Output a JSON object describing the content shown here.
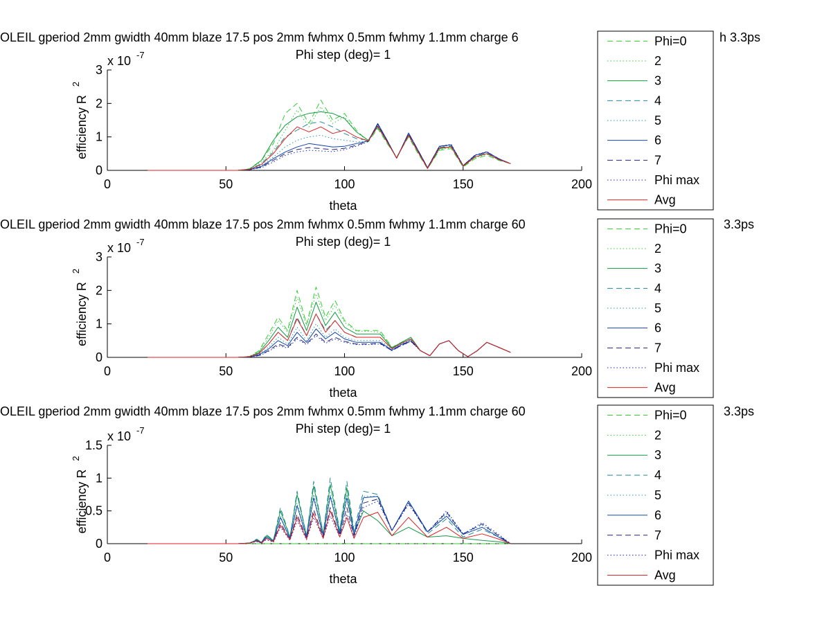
{
  "figure": {
    "background": "#ffffff"
  },
  "legend_styles": [
    {
      "color": "#33cc33",
      "dash": "8,5"
    },
    {
      "color": "#33cc33",
      "dash": "1.5,3"
    },
    {
      "color": "#119944",
      "dash": ""
    },
    {
      "color": "#228899",
      "dash": "8,5"
    },
    {
      "color": "#2299aa",
      "dash": "1.5,3"
    },
    {
      "color": "#1144aa",
      "dash": ""
    },
    {
      "color": "#222277",
      "dash": "8,5"
    },
    {
      "color": "#1122cc",
      "dash": "1.5,3"
    },
    {
      "color": "#dd2222",
      "dash": ""
    }
  ],
  "chart_data": [
    {
      "type": "line",
      "title": "OLEIL gperiod 2mm gwidth 40mm blaze 17.5 pos 2mm fwhmx 0.5mm fwhmy 1.1mm charge 6",
      "title_right": "h 3.3ps",
      "subtitle": "Phi step (deg)= 1",
      "xlabel": "theta",
      "ylabel": "efficiency R",
      "ylabel_sup": "2",
      "exponent": "x 10",
      "exponent_sup": "-7",
      "xlim": [
        0,
        200
      ],
      "ylim": [
        0,
        3
      ],
      "xticks": [
        "0",
        "50",
        "100",
        "150",
        "200"
      ],
      "yticks": [
        "0",
        "1",
        "2",
        "3"
      ],
      "legend": [
        "Phi=0",
        "2",
        "3",
        "4",
        "5",
        "6",
        "7",
        "Phi max",
        "Avg"
      ],
      "legend_position": "right",
      "x": [
        17,
        40,
        55,
        60,
        65,
        70,
        75,
        80,
        85,
        90,
        95,
        100,
        105,
        110,
        114,
        118,
        122,
        127,
        131,
        135,
        140,
        145,
        150,
        155,
        160,
        165,
        170
      ],
      "series": [
        {
          "values": [
            0,
            0,
            0,
            0.05,
            0.3,
            0.8,
            1.7,
            2.0,
            1.4,
            2.1,
            1.5,
            1.7,
            1.2,
            0.85,
            1.25,
            0.8,
            0.4,
            1.0,
            0.5,
            0.05,
            0.6,
            0.65,
            0.1,
            0.35,
            0.45,
            0.3,
            0.2
          ]
        },
        {
          "values": [
            0,
            0,
            0,
            0.04,
            0.25,
            0.6,
            1.2,
            1.8,
            1.3,
            1.9,
            1.4,
            1.6,
            1.15,
            0.88,
            1.28,
            0.82,
            0.38,
            1.02,
            0.52,
            0.05,
            0.62,
            0.68,
            0.12,
            0.38,
            0.48,
            0.32,
            0.2
          ]
        },
        {
          "values": [
            0,
            0,
            0,
            0.04,
            0.3,
            0.9,
            1.35,
            1.6,
            1.7,
            1.75,
            1.7,
            1.55,
            1.15,
            0.9,
            1.3,
            0.85,
            0.37,
            1.05,
            0.55,
            0.06,
            0.65,
            0.7,
            0.12,
            0.4,
            0.5,
            0.32,
            0.2
          ]
        },
        {
          "values": [
            0,
            0,
            0,
            0.03,
            0.2,
            0.55,
            1.0,
            1.2,
            1.4,
            1.45,
            1.3,
            1.1,
            0.95,
            0.9,
            1.35,
            0.88,
            0.37,
            1.08,
            0.58,
            0.06,
            0.68,
            0.72,
            0.13,
            0.42,
            0.52,
            0.33,
            0.2
          ]
        },
        {
          "values": [
            0,
            0,
            0,
            0.03,
            0.15,
            0.4,
            0.7,
            0.9,
            1.0,
            1.05,
            0.95,
            0.9,
            0.85,
            0.88,
            1.38,
            0.9,
            0.37,
            1.1,
            0.6,
            0.07,
            0.7,
            0.75,
            0.14,
            0.44,
            0.54,
            0.34,
            0.2
          ]
        },
        {
          "values": [
            0,
            0,
            0,
            0.02,
            0.12,
            0.35,
            0.55,
            0.7,
            0.8,
            0.75,
            0.7,
            0.72,
            0.8,
            0.88,
            1.4,
            0.9,
            0.36,
            1.12,
            0.6,
            0.08,
            0.72,
            0.76,
            0.14,
            0.45,
            0.55,
            0.35,
            0.2
          ]
        },
        {
          "values": [
            0,
            0,
            0,
            0.02,
            0.1,
            0.3,
            0.5,
            0.62,
            0.68,
            0.65,
            0.62,
            0.66,
            0.75,
            0.87,
            1.38,
            0.88,
            0.36,
            1.1,
            0.6,
            0.08,
            0.72,
            0.76,
            0.14,
            0.45,
            0.55,
            0.35,
            0.2
          ]
        },
        {
          "values": [
            0,
            0,
            0,
            0.02,
            0.08,
            0.25,
            0.45,
            0.55,
            0.6,
            0.58,
            0.56,
            0.62,
            0.72,
            0.86,
            1.35,
            0.88,
            0.36,
            1.1,
            0.6,
            0.08,
            0.72,
            0.78,
            0.15,
            0.46,
            0.56,
            0.35,
            0.2
          ]
        },
        {
          "values": [
            0,
            0,
            0,
            0.03,
            0.18,
            0.5,
            0.95,
            1.3,
            1.15,
            1.3,
            1.1,
            1.2,
            1.0,
            0.88,
            1.32,
            0.85,
            0.37,
            1.05,
            0.55,
            0.06,
            0.67,
            0.7,
            0.13,
            0.4,
            0.5,
            0.33,
            0.2
          ]
        }
      ]
    },
    {
      "type": "line",
      "title": "OLEIL gperiod 2mm gwidth 40mm blaze 17.5 pos 2mm fwhmx 0.5mm fwhmy 1.1mm charge 60",
      "title_right": "3.3ps",
      "subtitle": "Phi step (deg)= 1",
      "xlabel": "theta",
      "ylabel": "efficiency R",
      "ylabel_sup": "2",
      "exponent": "x 10",
      "exponent_sup": "-7",
      "xlim": [
        0,
        200
      ],
      "ylim": [
        0,
        3
      ],
      "xticks": [
        "0",
        "50",
        "100",
        "150",
        "200"
      ],
      "yticks": [
        "0",
        "1",
        "2",
        "3"
      ],
      "legend": [
        "Phi=0",
        "2",
        "3",
        "4",
        "5",
        "6",
        "7",
        "Phi max",
        "Avg"
      ],
      "legend_position": "right",
      "x": [
        17,
        40,
        55,
        60,
        64,
        68,
        72,
        76,
        80,
        84,
        88,
        92,
        96,
        100,
        105,
        110,
        115,
        120,
        124,
        128,
        132,
        136,
        140,
        144,
        148,
        152,
        156,
        160,
        165,
        170
      ],
      "series": [
        {
          "values": [
            0,
            0,
            0,
            0.03,
            0.2,
            0.7,
            1.2,
            0.8,
            2.0,
            1.0,
            2.1,
            1.2,
            1.7,
            1.1,
            0.8,
            0.8,
            0.8,
            0.3,
            0.45,
            0.55,
            0.2,
            0.05,
            0.4,
            0.5,
            0.2,
            0.02,
            0.2,
            0.45,
            0.3,
            0.15
          ]
        },
        {
          "values": [
            0,
            0,
            0,
            0.03,
            0.18,
            0.6,
            1.1,
            0.75,
            1.8,
            0.95,
            1.9,
            1.1,
            1.55,
            1.05,
            0.78,
            0.78,
            0.75,
            0.3,
            0.45,
            0.55,
            0.2,
            0.05,
            0.4,
            0.5,
            0.2,
            0.02,
            0.2,
            0.45,
            0.3,
            0.15
          ]
        },
        {
          "values": [
            0,
            0,
            0,
            0.02,
            0.15,
            0.5,
            0.9,
            0.6,
            1.5,
            0.8,
            1.65,
            0.95,
            1.35,
            0.9,
            0.7,
            0.7,
            0.7,
            0.28,
            0.45,
            0.6,
            0.2,
            0.05,
            0.4,
            0.5,
            0.2,
            0.02,
            0.2,
            0.45,
            0.3,
            0.15
          ]
        },
        {
          "values": [
            0,
            0,
            0,
            0.02,
            0.12,
            0.4,
            0.75,
            0.5,
            1.2,
            0.65,
            1.3,
            0.8,
            1.1,
            0.75,
            0.6,
            0.6,
            0.6,
            0.26,
            0.42,
            0.55,
            0.2,
            0.05,
            0.4,
            0.5,
            0.2,
            0.02,
            0.2,
            0.45,
            0.3,
            0.15
          ]
        },
        {
          "values": [
            0,
            0,
            0,
            0.02,
            0.1,
            0.3,
            0.6,
            0.4,
            0.9,
            0.5,
            1.0,
            0.6,
            0.85,
            0.6,
            0.5,
            0.5,
            0.5,
            0.25,
            0.4,
            0.52,
            0.2,
            0.05,
            0.4,
            0.5,
            0.2,
            0.02,
            0.2,
            0.45,
            0.3,
            0.15
          ]
        },
        {
          "values": [
            0,
            0,
            0,
            0.01,
            0.08,
            0.25,
            0.5,
            0.35,
            0.75,
            0.45,
            0.85,
            0.55,
            0.75,
            0.55,
            0.45,
            0.45,
            0.45,
            0.22,
            0.38,
            0.5,
            0.2,
            0.05,
            0.4,
            0.5,
            0.2,
            0.02,
            0.2,
            0.45,
            0.3,
            0.15
          ]
        },
        {
          "values": [
            0,
            0,
            0,
            0.01,
            0.06,
            0.2,
            0.4,
            0.3,
            0.6,
            0.4,
            0.7,
            0.45,
            0.6,
            0.48,
            0.4,
            0.4,
            0.42,
            0.2,
            0.36,
            0.48,
            0.2,
            0.05,
            0.4,
            0.5,
            0.2,
            0.02,
            0.2,
            0.45,
            0.3,
            0.15
          ]
        },
        {
          "values": [
            0,
            0,
            0,
            0.01,
            0.05,
            0.18,
            0.35,
            0.28,
            0.55,
            0.38,
            0.65,
            0.42,
            0.55,
            0.45,
            0.38,
            0.38,
            0.4,
            0.2,
            0.35,
            0.47,
            0.2,
            0.05,
            0.4,
            0.5,
            0.2,
            0.02,
            0.2,
            0.45,
            0.3,
            0.15
          ]
        },
        {
          "values": [
            0,
            0,
            0,
            0.02,
            0.12,
            0.4,
            0.75,
            0.5,
            1.15,
            0.65,
            1.3,
            0.75,
            1.1,
            0.75,
            0.6,
            0.6,
            0.6,
            0.26,
            0.42,
            0.55,
            0.2,
            0.05,
            0.4,
            0.5,
            0.2,
            0.02,
            0.2,
            0.45,
            0.3,
            0.15
          ]
        }
      ]
    },
    {
      "type": "line",
      "title": "OLEIL gperiod 2mm gwidth 40mm blaze 17.5 pos 2mm fwhmx 0.5mm fwhmy 1.1mm charge 60",
      "title_right": "3.3ps",
      "subtitle": "Phi step (deg)= 1",
      "xlabel": "theta",
      "ylabel": "efficiency R",
      "ylabel_sup": "2",
      "exponent": "x 10",
      "exponent_sup": "-7",
      "xlim": [
        0,
        200
      ],
      "ylim": [
        0,
        1.5
      ],
      "xticks": [
        "0",
        "50",
        "100",
        "150",
        "200"
      ],
      "yticks": [
        "0",
        "0.5",
        "1",
        "1.5"
      ],
      "legend": [
        "Phi=0",
        "2",
        "3",
        "4",
        "5",
        "6",
        "7",
        "Phi max",
        "Avg"
      ],
      "legend_position": "right",
      "x": [
        17,
        40,
        55,
        60,
        63,
        65,
        67,
        70,
        73,
        77,
        80,
        84,
        87,
        91,
        94,
        98,
        101,
        104,
        108,
        114,
        120,
        127,
        135,
        143,
        150,
        158,
        165,
        170
      ],
      "series": [
        {
          "values": [
            0,
            0,
            0,
            0,
            0,
            0,
            0,
            0,
            0,
            0,
            0,
            0,
            0,
            0,
            0,
            0,
            0,
            0,
            0,
            0,
            0,
            0,
            0,
            0,
            0,
            0,
            0,
            0
          ]
        },
        {
          "values": [
            0,
            0,
            0,
            0,
            0,
            0,
            0,
            0,
            0,
            0,
            0,
            0,
            0,
            0,
            0,
            0,
            0,
            0,
            0,
            0,
            0,
            0,
            0,
            0,
            0,
            0,
            0,
            0
          ]
        },
        {
          "values": [
            0,
            0,
            0,
            0.01,
            0.06,
            0.02,
            0.12,
            0.05,
            0.5,
            0.1,
            0.75,
            0.12,
            0.88,
            0.15,
            0.9,
            0.18,
            0.85,
            0.15,
            0.5,
            0.35,
            0.12,
            0.25,
            0.1,
            0.12,
            0.08,
            0.05,
            0.03,
            0
          ]
        },
        {
          "values": [
            0,
            0,
            0,
            0.01,
            0.07,
            0.02,
            0.14,
            0.05,
            0.55,
            0.1,
            0.8,
            0.12,
            0.95,
            0.15,
            1.0,
            0.2,
            0.95,
            0.2,
            0.8,
            0.75,
            0.2,
            0.65,
            0.15,
            0.38,
            0.1,
            0.22,
            0.1,
            0
          ]
        },
        {
          "values": [
            0,
            0,
            0,
            0.01,
            0.05,
            0.02,
            0.1,
            0.04,
            0.42,
            0.08,
            0.62,
            0.1,
            0.75,
            0.12,
            0.78,
            0.15,
            0.75,
            0.15,
            0.72,
            0.72,
            0.2,
            0.65,
            0.18,
            0.45,
            0.15,
            0.28,
            0.12,
            0
          ]
        },
        {
          "values": [
            0,
            0,
            0,
            0.01,
            0.05,
            0.02,
            0.1,
            0.04,
            0.4,
            0.08,
            0.58,
            0.1,
            0.7,
            0.12,
            0.72,
            0.15,
            0.7,
            0.15,
            0.7,
            0.72,
            0.2,
            0.65,
            0.18,
            0.42,
            0.14,
            0.25,
            0.1,
            0
          ]
        },
        {
          "values": [
            0,
            0,
            0,
            0.01,
            0.04,
            0.01,
            0.08,
            0.03,
            0.32,
            0.06,
            0.45,
            0.08,
            0.52,
            0.1,
            0.55,
            0.12,
            0.55,
            0.12,
            0.62,
            0.68,
            0.2,
            0.62,
            0.18,
            0.48,
            0.15,
            0.3,
            0.12,
            0
          ]
        },
        {
          "values": [
            0,
            0,
            0,
            0.01,
            0.03,
            0.01,
            0.06,
            0.02,
            0.25,
            0.05,
            0.35,
            0.06,
            0.4,
            0.08,
            0.42,
            0.1,
            0.45,
            0.1,
            0.55,
            0.65,
            0.2,
            0.6,
            0.18,
            0.5,
            0.15,
            0.32,
            0.14,
            0
          ]
        },
        {
          "values": [
            0,
            0,
            0,
            0.01,
            0.04,
            0.01,
            0.08,
            0.03,
            0.28,
            0.06,
            0.4,
            0.07,
            0.46,
            0.08,
            0.5,
            0.1,
            0.4,
            0.08,
            0.4,
            0.48,
            0.12,
            0.4,
            0.1,
            0.25,
            0.08,
            0.15,
            0.07,
            0
          ]
        }
      ]
    }
  ]
}
